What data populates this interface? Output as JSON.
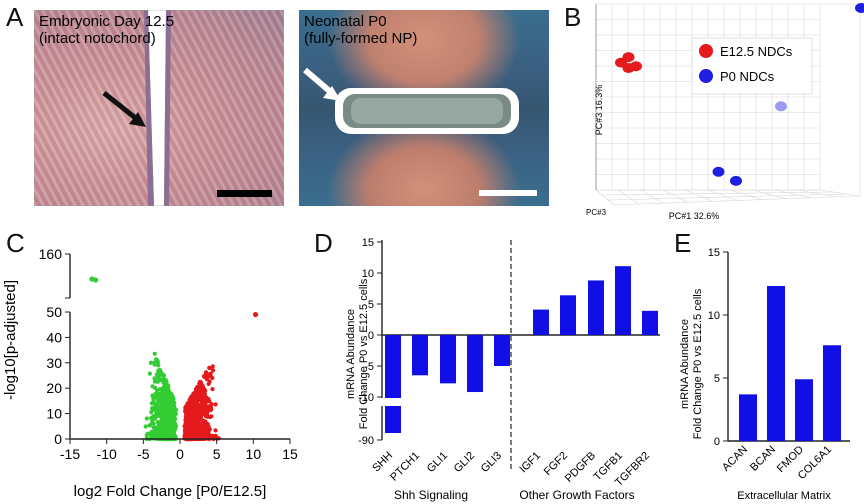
{
  "panels": {
    "a": {
      "letter": "A",
      "left_caption": [
        "Embryonic Day 12.5",
        "(intact notochord)"
      ],
      "right_caption": [
        "Neonatal P0",
        "(fully-formed NP)"
      ]
    },
    "b": {
      "letter": "B"
    },
    "c": {
      "letter": "C"
    },
    "d": {
      "letter": "D"
    },
    "e": {
      "letter": "E"
    }
  },
  "colors": {
    "red": "#e41a1c",
    "blue": "#1f1fe0",
    "green": "#33cc33",
    "bar": "#0f0fe6"
  },
  "chart_data": [
    {
      "id": "pca",
      "type": "scatter",
      "xlabel": "PC#1 32.6%",
      "ylabel": "PC#3 16.3%",
      "zlabel": "PC#3",
      "legend": [
        "E12.5 NDCs",
        "P0 NDCs"
      ],
      "legend_position": "top-left",
      "grid": true,
      "series": [
        {
          "name": "E12.5 NDCs",
          "color": "#e41a1c",
          "points": [
            [
              0.06,
              0.7
            ],
            [
              0.09,
              0.73
            ],
            [
              0.09,
              0.67
            ],
            [
              0.12,
              0.68
            ]
          ]
        },
        {
          "name": "P0 NDCs",
          "color": "#1f1fe0",
          "points": [
            [
              1.02,
              1.0
            ],
            [
              0.7,
              0.46
            ],
            [
              0.45,
              0.1
            ],
            [
              0.52,
              0.05
            ]
          ]
        }
      ]
    },
    {
      "id": "volcano",
      "type": "scatter",
      "xlabel": "log2 Fold Change [P0/E12.5]",
      "ylabel": "-log10[p-adjusted]",
      "xlim": [
        -15,
        15
      ],
      "xticks": [
        "-15",
        "-10",
        "-5",
        "0",
        "5",
        "10",
        "15"
      ],
      "yticks": [
        "0",
        "10",
        "20",
        "30",
        "40",
        "50",
        "160"
      ],
      "broken_axis": true,
      "series": [
        {
          "name": "down",
          "color": "#33cc33",
          "highlight": [
            [
              -12.0,
              160
            ],
            [
              -11.6,
              159.5
            ]
          ]
        },
        {
          "name": "up",
          "color": "#e41a1c",
          "highlight": [
            [
              10.3,
              49
            ]
          ]
        }
      ]
    },
    {
      "id": "shh_growth",
      "type": "bar",
      "ylabel": [
        "mRNA Abundance",
        "Fold Change P0 vs E12.5 cells"
      ],
      "yticks": [
        "15",
        "10",
        "5",
        "0",
        "-5",
        "-10",
        "-90"
      ],
      "groups": [
        "Shh Signaling",
        "Other Growth Factors"
      ],
      "categories": [
        "SHH",
        "PTCH1",
        "GLI1",
        "GLI2",
        "GLI3",
        "IGF1",
        "FGF2",
        "PDGFB",
        "TGFB1",
        "TGFBR2"
      ],
      "values": [
        -90,
        -6.5,
        -7.8,
        -9.2,
        -5,
        4.1,
        6.4,
        8.8,
        11.1,
        3.9
      ]
    },
    {
      "id": "ecm",
      "type": "bar",
      "ylabel": [
        "mRNA Abundance",
        "Fold Change P0 vs E12.5 cells"
      ],
      "xlabel": "Extracellular Matrix",
      "ylim": [
        0,
        15
      ],
      "yticks": [
        "0",
        "5",
        "10",
        "15"
      ],
      "categories": [
        "ACAN",
        "BCAN",
        "FMOD",
        "COL6A1"
      ],
      "values": [
        3.7,
        12.3,
        4.9,
        7.6
      ]
    }
  ]
}
